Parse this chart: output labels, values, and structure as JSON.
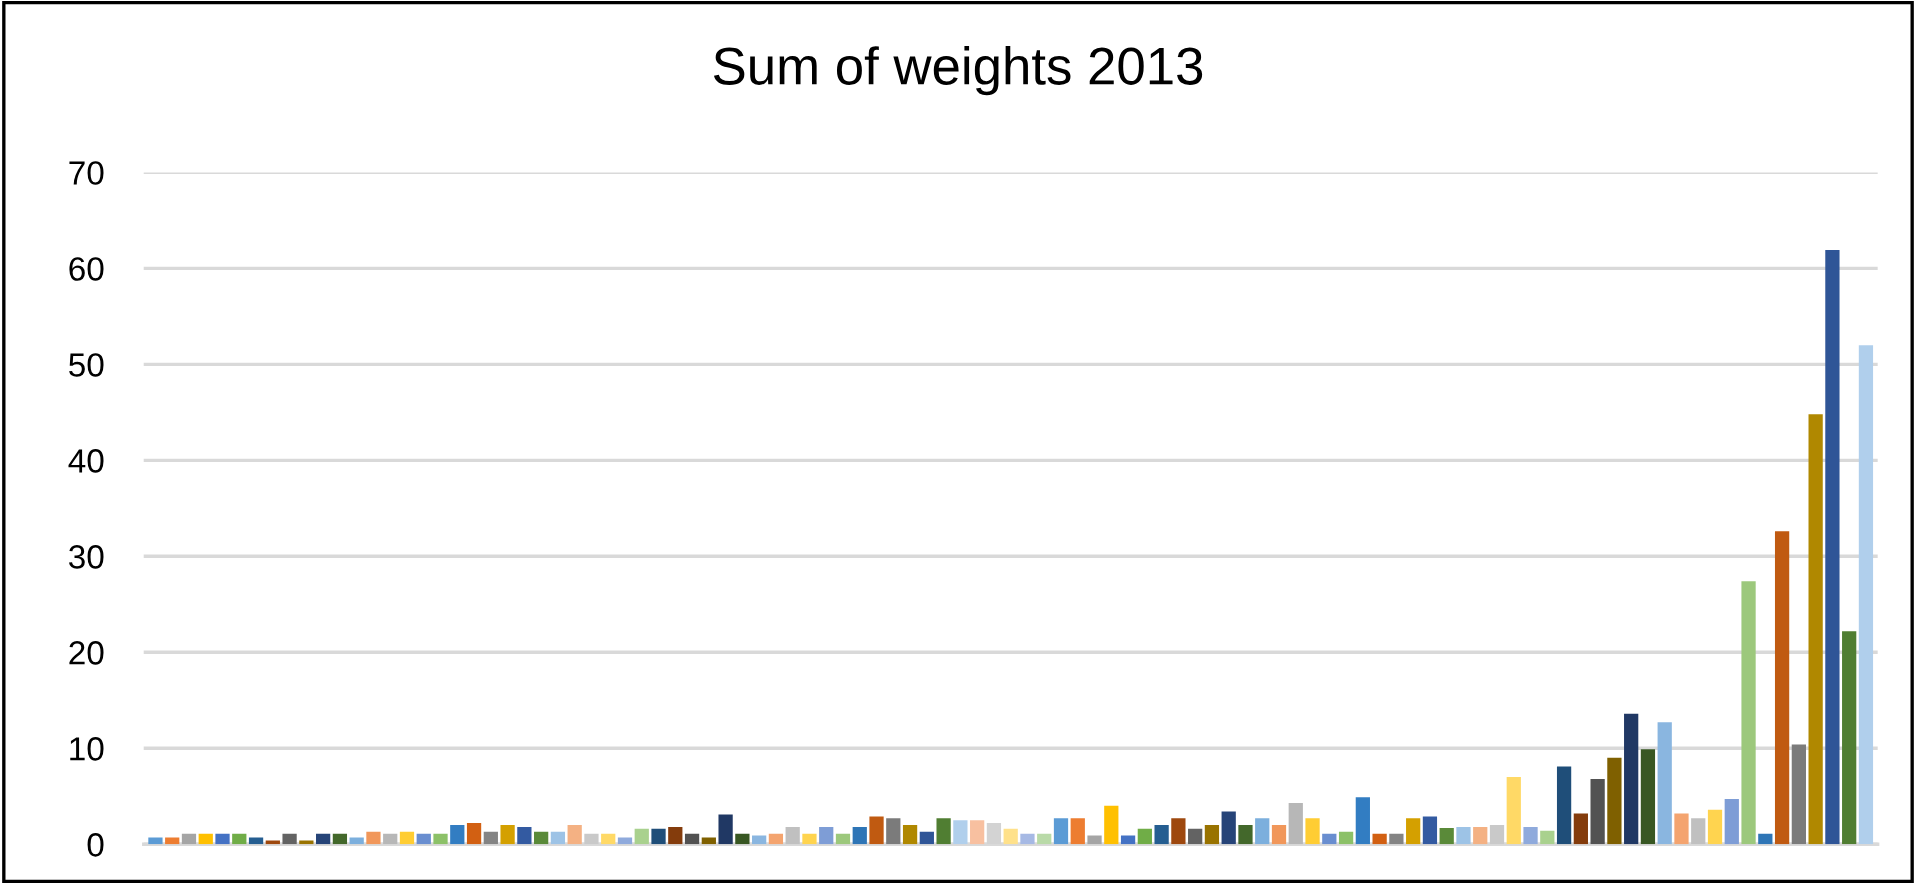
{
  "chart_data": {
    "type": "bar",
    "title": "Sum of weights 2013",
    "categories": [
      null,
      null,
      null,
      null,
      null,
      null,
      null,
      null,
      null,
      null,
      null,
      null,
      null,
      null,
      null,
      null,
      null,
      null,
      null,
      null,
      null,
      null,
      null,
      null,
      null,
      null,
      null,
      null,
      null,
      null,
      null,
      null,
      null,
      null,
      null,
      null,
      null,
      null,
      null,
      null,
      null,
      null,
      null,
      null,
      null,
      null,
      null,
      null,
      null,
      null,
      null,
      null,
      null,
      null,
      null,
      null,
      null,
      null,
      null,
      null,
      null,
      null,
      null,
      null,
      null,
      null,
      null,
      null,
      null,
      null,
      null,
      null,
      null,
      null,
      null,
      null,
      null,
      null,
      null,
      null,
      null,
      null,
      null,
      null,
      null,
      null,
      null,
      null,
      null,
      null,
      null,
      null,
      null,
      null,
      null,
      null,
      null,
      null,
      null,
      null,
      null,
      null,
      null
    ],
    "values": [
      0.7,
      0.7,
      1.1,
      1.1,
      1.1,
      1.1,
      0.7,
      0.4,
      1.1,
      0.4,
      1.1,
      1.1,
      0.7,
      1.3,
      1.1,
      1.3,
      1.1,
      1.1,
      2.0,
      2.2,
      1.3,
      2.0,
      1.8,
      1.3,
      1.3,
      2.0,
      1.1,
      1.1,
      0.7,
      1.6,
      1.6,
      1.8,
      1.1,
      0.7,
      3.1,
      1.1,
      0.9,
      1.1,
      1.8,
      1.1,
      1.8,
      1.1,
      1.8,
      2.9,
      2.7,
      2.0,
      1.3,
      2.7,
      2.5,
      2.5,
      2.2,
      1.6,
      1.1,
      1.1,
      2.7,
      2.7,
      0.9,
      4.0,
      0.9,
      1.6,
      2.0,
      2.7,
      1.6,
      2.0,
      3.4,
      2.0,
      2.7,
      2.0,
      4.3,
      2.7,
      1.1,
      1.3,
      4.9,
      1.1,
      1.1,
      2.7,
      2.9,
      1.7,
      1.8,
      1.8,
      2.0,
      7.0,
      1.8,
      1.4,
      8.1,
      3.2,
      6.8,
      9.0,
      13.6,
      9.9,
      12.7,
      3.2,
      2.7,
      3.6,
      4.7,
      27.4,
      1.1,
      32.6,
      10.4,
      44.8,
      61.9,
      22.2,
      52.0
    ],
    "colors": [
      "#5b9bd5",
      "#ed7d31",
      "#a5a5a5",
      "#ffc000",
      "#4472c4",
      "#70ad47",
      "#255e91",
      "#9e480e",
      "#636363",
      "#997300",
      "#264478",
      "#43682b",
      "#7cafdd",
      "#f1975a",
      "#b7b7b7",
      "#ffcd33",
      "#698ed0",
      "#8cc168",
      "#327dc2",
      "#d26012",
      "#848484",
      "#d4a000",
      "#335aa1",
      "#5a8a39",
      "#9dc3e6",
      "#f4b183",
      "#c9c9c9",
      "#ffd966",
      "#8faadc",
      "#a9d18e",
      "#1f4e79",
      "#843c0c",
      "#525252",
      "#7f6000",
      "#203864",
      "#385723",
      "#8ab6e0",
      "#f4a46f",
      "#c0c0c0",
      "#ffd44f",
      "#7e9dd6",
      "#9cc87c",
      "#2e75b6",
      "#c05a11",
      "#7b7b7b",
      "#b08800",
      "#2f5597",
      "#507e32",
      "#b0cfec",
      "#f8c0a0",
      "#d3d3d3",
      "#ffe18a",
      "#a6b9e4",
      "#b9daa8",
      "#5b9bd5",
      "#ed7d31",
      "#a5a5a5",
      "#ffc000",
      "#4472c4",
      "#70ad47",
      "#255e91",
      "#9e480e",
      "#636363",
      "#997300",
      "#264478",
      "#43682b",
      "#7cafdd",
      "#f1975a",
      "#b7b7b7",
      "#ffcd33",
      "#698ed0",
      "#8cc168",
      "#327dc2",
      "#d26012",
      "#848484",
      "#d4a000",
      "#335aa1",
      "#5a8a39",
      "#9dc3e6",
      "#f4b183",
      "#c9c9c9",
      "#ffd966",
      "#8faadc",
      "#a9d18e",
      "#1f4e79",
      "#843c0c",
      "#525252",
      "#7f6000",
      "#203864",
      "#385723",
      "#8ab6e0",
      "#f4a46f",
      "#c0c0c0",
      "#ffd44f",
      "#7e9dd6",
      "#9cc87c",
      "#2e75b6",
      "#c05a11",
      "#7b7b7b",
      "#b08800",
      "#2f5597",
      "#507e32",
      "#b0cfec"
    ],
    "ylim": [
      0,
      70
    ],
    "yticks": [
      0,
      10,
      20,
      30,
      40,
      50,
      60,
      70
    ],
    "grid": "y",
    "tick_labels": "y",
    "legend": false
  }
}
